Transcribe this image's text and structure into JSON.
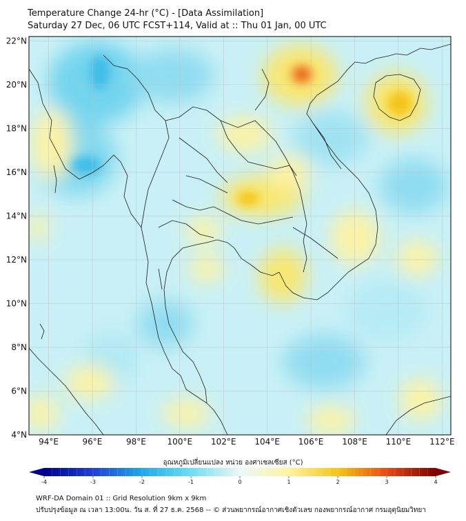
{
  "header": {
    "title_line1": "Temperature Change 24-hr (°C) - [Data Assimilation]",
    "title_line2": "Saturday 27 Dec, 06 UTC FCST+114, Valid at :: Thu 01 Jan, 00 UTC"
  },
  "map": {
    "lat_labels": [
      "22°N",
      "20°N",
      "18°N",
      "16°N",
      "14°N",
      "12°N",
      "10°N",
      "8°N",
      "6°N",
      "4°N"
    ],
    "lon_labels": [
      "94°E",
      "96°E",
      "98°E",
      "100°E",
      "102°E",
      "104°E",
      "106°E",
      "108°E",
      "110°E",
      "112°E"
    ],
    "lat_range": [
      4,
      22.2
    ],
    "lon_range": [
      93.1,
      112.4
    ]
  },
  "colorbar": {
    "title": "อุณหภูมิเปลี่ยนแปลง หน่วย องศาเซลเซียส (°C)",
    "min": -4,
    "max": 4,
    "tick_labels": [
      "-4",
      "-3",
      "-2",
      "-1",
      "0",
      "1",
      "2",
      "3",
      "4"
    ],
    "colors": {
      "neg4": "#00008b",
      "neg3": "#1f3fd6",
      "neg2": "#1fa8e8",
      "neg1": "#6fdcf2",
      "zero": "#eaf8f8",
      "pos1": "#fff3a0",
      "pos2": "#f5c516",
      "pos3": "#e84a14",
      "pos4": "#7f0000"
    }
  },
  "footer": {
    "line1": "WRF-DA Domain 01 :: Grid Resolution 9km x 9km",
    "line2": "ปรับปรุงข้อมูล ณ เวลา 13:00น. วัน ส. ที่ 27 ธ.ค. 2568 -- © ส่วนพยากรณ์อากาศเชิงตัวเลข กองพยากรณ์อากาศ กรมอุตุนิยมวิทยา"
  }
}
